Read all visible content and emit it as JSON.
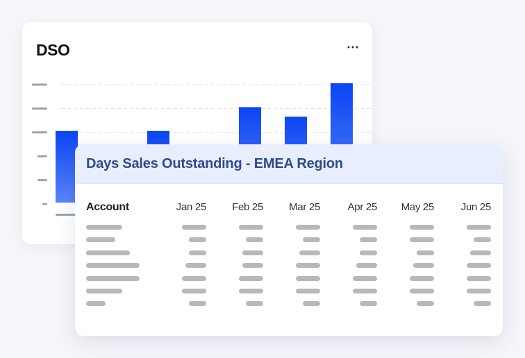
{
  "chart_card": {
    "title": "DSO",
    "menu_label": "⋯"
  },
  "chart_data": {
    "type": "bar",
    "values": [
      3.0,
      null,
      3.0,
      null,
      4.0,
      3.6,
      5.0
    ],
    "ylim": [
      0,
      5
    ],
    "grid": true,
    "bar_color": "#0a45f5",
    "title": "DSO"
  },
  "table_card": {
    "title": "Days Sales Outstanding - EMEA Region",
    "header_bg": "#e8eefd",
    "title_color": "#2d4b8c",
    "columns": [
      "Account",
      "Jan 25",
      "Feb 25",
      "Mar 25",
      "Apr 25",
      "May 25",
      "Jun 25"
    ],
    "row_count": 7
  }
}
